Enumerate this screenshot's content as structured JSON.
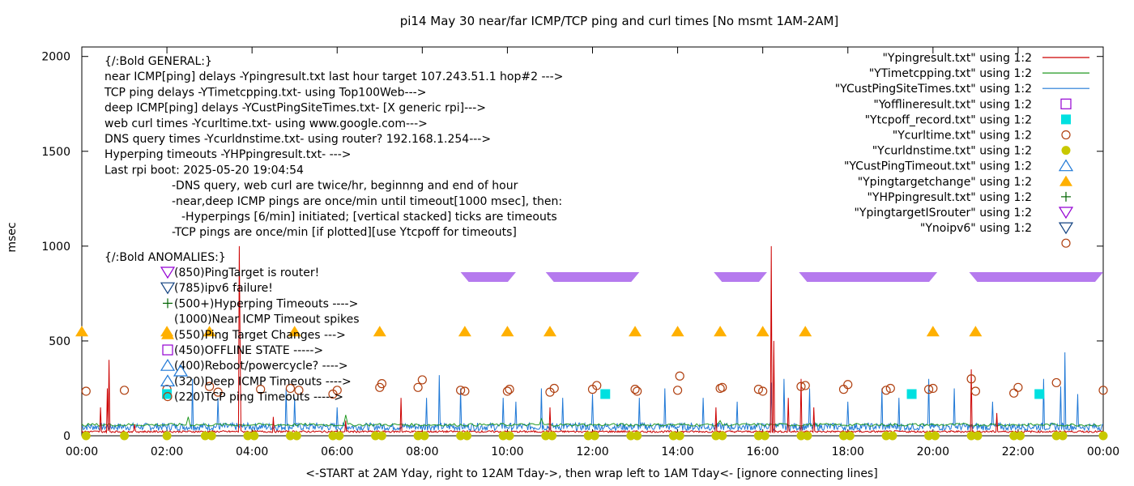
{
  "chart_data": {
    "type": "line",
    "title": "pi14 May 30  near/far ICMP/TCP ping and curl times [No msmt 1AM-2AM]",
    "ylabel": "msec",
    "xlabel": "<-START at 2AM Yday, right to 12AM Tday->, then wrap left to 1AM Tday<- [ignore connecting lines]",
    "xlim": [
      0,
      24
    ],
    "ylim": [
      0,
      2050
    ],
    "grid": false,
    "legend_position": "top-right",
    "yticks": [
      0,
      500,
      1000,
      1500,
      2000
    ],
    "xticks": [
      {
        "x": 0,
        "label": "00:00"
      },
      {
        "x": 2,
        "label": "02:00"
      },
      {
        "x": 4,
        "label": "04:00"
      },
      {
        "x": 6,
        "label": "06:00"
      },
      {
        "x": 8,
        "label": "08:00"
      },
      {
        "x": 10,
        "label": "10:00"
      },
      {
        "x": 12,
        "label": "12:00"
      },
      {
        "x": 14,
        "label": "14:00"
      },
      {
        "x": 16,
        "label": "16:00"
      },
      {
        "x": 18,
        "label": "18:00"
      },
      {
        "x": 20,
        "label": "20:00"
      },
      {
        "x": 22,
        "label": "22:00"
      },
      {
        "x": 24,
        "label": "00:00"
      }
    ],
    "legend": [
      {
        "label": "\"Ypingresult.txt\" using 1:2",
        "kind": "line",
        "color": "#cc0000"
      },
      {
        "label": "\"YTimetcpping.txt\" using 1:2",
        "kind": "line",
        "color": "#229922"
      },
      {
        "label": "\"YCustPingSiteTimes.txt\" using 1:2",
        "kind": "line",
        "color": "#1f78d6"
      },
      {
        "label": "\"Yofflineresult.txt\" using 1:2",
        "kind": "square-open",
        "color": "#9400d3"
      },
      {
        "label": "\"Ytcpoff_record.txt\" using 1:2",
        "kind": "square-filled",
        "color": "#00e0e0"
      },
      {
        "label": "\"Ycurltime.txt\" using 1:2",
        "kind": "circle-open",
        "color": "#b04010"
      },
      {
        "label": "\"Ycurldnstime.txt\" using 1:2",
        "kind": "circle-filled",
        "color": "#c8c800"
      },
      {
        "label": "\"YCustPingTimeout.txt\" using 1:2",
        "kind": "triangle-open",
        "color": "#1f78d6"
      },
      {
        "label": "\"Ypingtargetchange\" using 1:2",
        "kind": "triangle-filled",
        "color": "#ffb000"
      },
      {
        "label": "\"YHPpingresult.txt\" using 1:2",
        "kind": "plus",
        "color": "#006400"
      },
      {
        "label": "\"YpingtargetISrouter\" using 1:2",
        "kind": "triangle-down-open",
        "color": "#9400d3"
      },
      {
        "label": "\"Ynoipv6\" using 1:2",
        "kind": "triangle-down-open",
        "color": "#104080"
      },
      {
        "label": "",
        "kind": "circle-open",
        "color": "#b04010"
      }
    ],
    "annotations": [
      "{/:Bold GENERAL:}",
      "near ICMP[ping] delays -Ypingresult.txt last hour target 107.243.51.1 hop#2 --->",
      "TCP ping delays -YTimetcpping.txt- using Top100Web--->",
      "deep ICMP[ping] delays -YCustPingSiteTimes.txt- [X generic rpi]--->",
      "web curl times -Ycurltime.txt- using www.google.com--->",
      "DNS query times -Ycurldnstime.txt- using router? 192.168.1.254--->",
      "Hyperping timeouts -YHPpingresult.txt- --->",
      "Last rpi boot: 2025-05-20 19:04:54",
      "-DNS query, web curl are twice/hr, beginnng and end of hour",
      "-near,deep ICMP pings are once/min until timeout[1000 msec], then:",
      "-Hyperpings [6/min] initiated; [vertical stacked] ticks are timeouts",
      "-TCP pings are once/min [if plotted][use Ytcpoff for timeouts]",
      "{/:Bold ANOMALIES:}"
    ],
    "anomalies": [
      {
        "text": "(850)PingTarget is router!",
        "marker": "triangle-down-open",
        "color": "#9400d3"
      },
      {
        "text": "(785)ipv6 failure!",
        "marker": "triangle-down-open",
        "color": "#104080"
      },
      {
        "text": "(500+)Hyperping Timeouts ---->",
        "marker": "plus",
        "color": "#006400"
      },
      {
        "text": "(1000)Near ICMP Timeout spikes",
        "marker": "",
        "color": ""
      },
      {
        "text": "(550)Ping Target Changes --->",
        "marker": "triangle-filled",
        "color": "#ffb000"
      },
      {
        "text": "(450)OFFLINE STATE ----->",
        "marker": "square-open",
        "color": "#9400d3"
      },
      {
        "text": "(400)Reboot/powercycle? ---->",
        "marker": "triangle-open",
        "color": "#1f78d6"
      },
      {
        "text": "(320)Deep ICMP Timeouts ---->",
        "marker": "triangle-open",
        "color": "#1f78d6"
      },
      {
        "text": "(220)TCP ping Timeouts ----->",
        "marker": "circle-open",
        "color": "#b04010"
      }
    ],
    "series": [
      {
        "name": "Ypingresult.txt",
        "color": "#cc0000",
        "baseline": 20,
        "spikes": [
          [
            0.45,
            150
          ],
          [
            0.6,
            250
          ],
          [
            0.65,
            400
          ],
          [
            1.25,
            60
          ],
          [
            3.7,
            1000
          ],
          [
            3.72,
            450
          ],
          [
            4.5,
            100
          ],
          [
            6.2,
            80
          ],
          [
            7.5,
            200
          ],
          [
            11.0,
            150
          ],
          [
            14.9,
            150
          ],
          [
            16.2,
            1000
          ],
          [
            16.25,
            500
          ],
          [
            16.6,
            200
          ],
          [
            16.9,
            300
          ],
          [
            17.2,
            150
          ],
          [
            20.9,
            350
          ],
          [
            21.5,
            120
          ]
        ]
      },
      {
        "name": "YTimetcpping.txt",
        "color": "#229922",
        "baseline": 55,
        "spikes": [
          [
            2.5,
            100
          ],
          [
            6.2,
            110
          ],
          [
            10.8,
            90
          ],
          [
            15.0,
            80
          ]
        ]
      },
      {
        "name": "YCustPingSiteTimes.txt",
        "color": "#1f78d6",
        "baseline": 40,
        "spikes": [
          [
            2.6,
            300
          ],
          [
            3.2,
            200
          ],
          [
            4.8,
            250
          ],
          [
            5.0,
            200
          ],
          [
            6.0,
            150
          ],
          [
            8.1,
            200
          ],
          [
            8.4,
            320
          ],
          [
            8.9,
            250
          ],
          [
            9.9,
            200
          ],
          [
            10.2,
            180
          ],
          [
            10.8,
            250
          ],
          [
            11.3,
            200
          ],
          [
            12.0,
            220
          ],
          [
            13.1,
            200
          ],
          [
            13.7,
            250
          ],
          [
            14.6,
            200
          ],
          [
            15.4,
            180
          ],
          [
            16.2,
            280
          ],
          [
            16.5,
            300
          ],
          [
            17.1,
            250
          ],
          [
            18.0,
            180
          ],
          [
            18.8,
            250
          ],
          [
            19.2,
            200
          ],
          [
            19.9,
            300
          ],
          [
            20.5,
            250
          ],
          [
            21.4,
            180
          ],
          [
            22.6,
            300
          ],
          [
            23.0,
            260
          ],
          [
            23.1,
            440
          ],
          [
            23.4,
            220
          ]
        ]
      },
      {
        "name": "Yofflineresult.txt",
        "color": "#9400d3",
        "points": []
      },
      {
        "name": "Ytcpoff_record.txt",
        "color": "#00e0e0",
        "points": [
          [
            2.0,
            220
          ],
          [
            12.3,
            220
          ],
          [
            19.5,
            220
          ],
          [
            22.5,
            220
          ]
        ]
      },
      {
        "name": "Ycurltime.txt",
        "color": "#b04010",
        "points": [
          [
            0.1,
            235
          ],
          [
            1.0,
            240
          ],
          [
            2.0,
            245
          ],
          [
            3.0,
            260
          ],
          [
            3.2,
            230
          ],
          [
            4.2,
            245
          ],
          [
            4.9,
            250
          ],
          [
            5.1,
            240
          ],
          [
            5.9,
            220
          ],
          [
            6.0,
            240
          ],
          [
            7.0,
            255
          ],
          [
            7.05,
            275
          ],
          [
            7.9,
            255
          ],
          [
            8.0,
            295
          ],
          [
            8.9,
            240
          ],
          [
            9.0,
            235
          ],
          [
            10.0,
            235
          ],
          [
            10.05,
            245
          ],
          [
            11.0,
            230
          ],
          [
            11.1,
            250
          ],
          [
            12.0,
            245
          ],
          [
            12.1,
            265
          ],
          [
            13.0,
            245
          ],
          [
            13.05,
            235
          ],
          [
            14.0,
            240
          ],
          [
            14.05,
            315
          ],
          [
            15.0,
            250
          ],
          [
            15.05,
            255
          ],
          [
            15.9,
            245
          ],
          [
            16.0,
            235
          ],
          [
            16.9,
            260
          ],
          [
            17.0,
            265
          ],
          [
            17.9,
            245
          ],
          [
            18.0,
            270
          ],
          [
            18.9,
            240
          ],
          [
            19.0,
            250
          ],
          [
            19.9,
            245
          ],
          [
            20.0,
            250
          ],
          [
            20.9,
            300
          ],
          [
            21.0,
            235
          ],
          [
            21.9,
            225
          ],
          [
            22.0,
            255
          ],
          [
            22.9,
            280
          ],
          [
            24.0,
            240
          ]
        ]
      },
      {
        "name": "Ycurldnstime.txt",
        "color": "#c8c800",
        "points": [
          [
            0.1,
            0
          ],
          [
            1.0,
            0
          ],
          [
            2.0,
            0
          ],
          [
            2.9,
            0
          ],
          [
            3.05,
            0
          ],
          [
            3.9,
            0
          ],
          [
            4.05,
            0
          ],
          [
            4.9,
            0
          ],
          [
            5.05,
            0
          ],
          [
            5.9,
            0
          ],
          [
            6.05,
            0
          ],
          [
            6.9,
            0
          ],
          [
            7.05,
            0
          ],
          [
            7.9,
            0
          ],
          [
            8.05,
            0
          ],
          [
            8.9,
            0
          ],
          [
            9.05,
            0
          ],
          [
            9.9,
            0
          ],
          [
            10.05,
            0
          ],
          [
            10.9,
            0
          ],
          [
            11.05,
            0
          ],
          [
            11.9,
            0
          ],
          [
            12.05,
            0
          ],
          [
            12.9,
            0
          ],
          [
            13.05,
            0
          ],
          [
            13.9,
            0
          ],
          [
            14.05,
            0
          ],
          [
            14.9,
            0
          ],
          [
            15.05,
            0
          ],
          [
            15.9,
            0
          ],
          [
            16.05,
            0
          ],
          [
            16.9,
            0
          ],
          [
            17.05,
            0
          ],
          [
            17.9,
            0
          ],
          [
            18.05,
            0
          ],
          [
            18.9,
            0
          ],
          [
            19.05,
            0
          ],
          [
            19.9,
            0
          ],
          [
            20.05,
            0
          ],
          [
            20.9,
            0
          ],
          [
            21.05,
            0
          ],
          [
            21.9,
            0
          ],
          [
            22.05,
            0
          ],
          [
            22.9,
            0
          ],
          [
            23.05,
            0
          ],
          [
            24.0,
            0
          ]
        ]
      },
      {
        "name": "YCustPingTimeout.txt",
        "color": "#1f78d6",
        "points": []
      },
      {
        "name": "Ypingtargetchange",
        "color": "#ffb000",
        "points": [
          [
            0.0,
            550
          ],
          [
            2.0,
            550
          ],
          [
            3.0,
            550
          ],
          [
            5.0,
            550
          ],
          [
            7.0,
            550
          ],
          [
            9.0,
            550
          ],
          [
            10.0,
            550
          ],
          [
            11.0,
            550
          ],
          [
            13.0,
            550
          ],
          [
            14.0,
            550
          ],
          [
            15.0,
            550
          ],
          [
            16.0,
            550
          ],
          [
            17.0,
            550
          ],
          [
            20.0,
            550
          ],
          [
            21.0,
            550
          ]
        ]
      },
      {
        "name": "YHPpingresult.txt",
        "color": "#006400",
        "points": []
      },
      {
        "name": "YpingtargetISrouter",
        "color": "#9400d3",
        "segments": [
          [
            8.9,
            10.2
          ],
          [
            10.9,
            13.1
          ],
          [
            14.85,
            16.1
          ],
          [
            16.85,
            20.1
          ],
          [
            20.85,
            24.0
          ]
        ],
        "y": 850
      },
      {
        "name": "Ynoipv6",
        "color": "#104080",
        "points": []
      }
    ]
  }
}
